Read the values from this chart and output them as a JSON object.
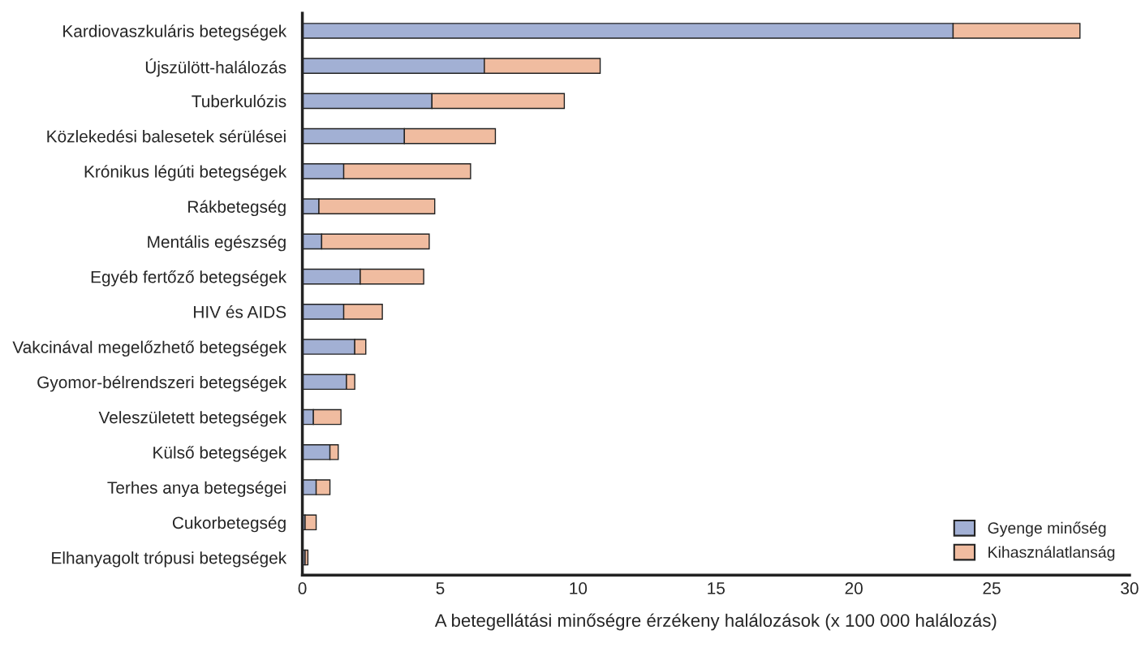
{
  "chart_data": {
    "type": "bar",
    "orientation": "horizontal",
    "stacked": true,
    "xlabel": "A betegellátási minőségre érzékeny halálozások (x 100 000 halálozás)",
    "categories": [
      "Kardiovaszkuláris betegségek",
      "Újszülött-halálozás",
      "Tuberkulózis",
      "Közlekedési balesetek sérülései",
      "Krónikus légúti betegségek",
      "Rákbetegség",
      "Mentális egészség",
      "Egyéb fertőző betegségek",
      "HIV és AIDS",
      "Vakcinával megelőzhető betegségek",
      "Gyomor-bélrendszeri betegségek",
      "Veleszületett betegségek",
      "Külső betegségek",
      "Terhes anya betegségei",
      "Cukorbetegség",
      "Elhanyagolt trópusi betegségek"
    ],
    "series": [
      {
        "name": "Gyenge minőség",
        "color": "#a2b0d4",
        "values": [
          23.6,
          6.6,
          4.7,
          3.7,
          1.5,
          0.6,
          0.7,
          2.1,
          1.5,
          1.9,
          1.6,
          0.4,
          1.0,
          0.5,
          0.1,
          0.1
        ]
      },
      {
        "name": "Kihasználatlanság",
        "color": "#f0bca0",
        "values": [
          4.6,
          4.2,
          4.8,
          3.3,
          4.6,
          4.2,
          3.9,
          2.3,
          1.4,
          0.4,
          0.3,
          1.0,
          0.3,
          0.5,
          0.4,
          0.1
        ]
      }
    ],
    "xlim": [
      0,
      30
    ],
    "xticks": [
      0,
      5,
      10,
      15,
      20,
      25,
      30
    ],
    "grid": false,
    "legend": "bottom right"
  }
}
